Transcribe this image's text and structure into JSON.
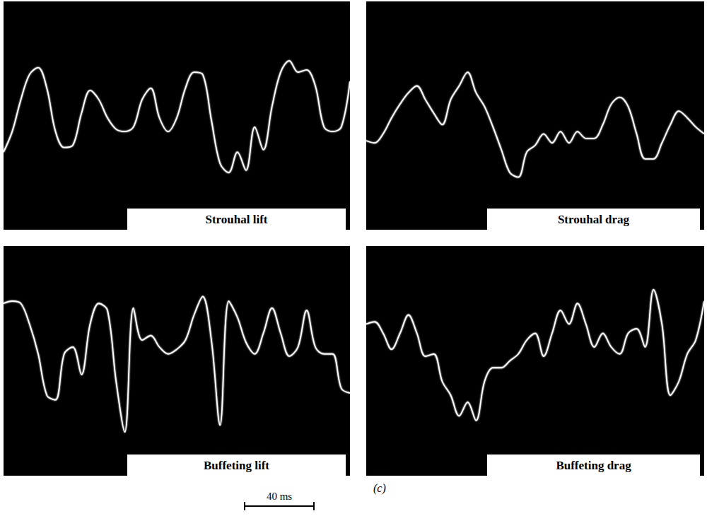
{
  "chart_data": [
    {
      "type": "line",
      "title": "Strouhal lift",
      "color": "#ffffff",
      "grid": false,
      "tick_labels": false,
      "xlim": [
        0,
        200
      ],
      "ylim": [
        0,
        100
      ],
      "x": [
        0,
        5,
        10,
        15,
        20,
        25,
        30,
        35,
        40,
        45,
        50,
        55,
        60,
        65,
        70,
        75,
        80,
        85,
        90,
        95,
        100,
        105,
        110,
        115,
        120,
        125,
        130,
        135,
        140,
        145,
        150,
        155,
        160,
        165,
        170,
        175,
        180,
        185,
        190,
        195,
        200
      ],
      "values": [
        34,
        43,
        57,
        68,
        71,
        62,
        43,
        36,
        37,
        51,
        61,
        57,
        49,
        44,
        43,
        45,
        57,
        62,
        49,
        43,
        49,
        62,
        69,
        68,
        48,
        29,
        25,
        34,
        26,
        45,
        35,
        54,
        69,
        74,
        69,
        70,
        63,
        45,
        43,
        45,
        65
      ]
    },
    {
      "type": "line",
      "title": "Strouhal drag",
      "color": "#ffffff",
      "grid": false,
      "tick_labels": false,
      "xlim": [
        0,
        200
      ],
      "ylim": [
        0,
        100
      ],
      "x": [
        0,
        5,
        10,
        15,
        20,
        25,
        30,
        35,
        40,
        45,
        50,
        55,
        60,
        65,
        70,
        75,
        80,
        85,
        90,
        95,
        100,
        105,
        110,
        115,
        120,
        125,
        130,
        135,
        140,
        145,
        150,
        155,
        160,
        165,
        170,
        175,
        180,
        185,
        190,
        195,
        200
      ],
      "values": [
        39,
        38,
        42,
        49,
        55,
        60,
        63,
        57,
        51,
        46,
        57,
        63,
        69,
        60,
        54,
        45,
        35,
        25,
        23,
        34,
        37,
        42,
        38,
        43,
        38,
        43,
        40,
        40,
        46,
        55,
        58,
        54,
        42,
        31,
        31,
        38,
        46,
        52,
        49,
        45,
        42
      ]
    },
    {
      "type": "line",
      "title": "Buffeting lift",
      "color": "#ffffff",
      "grid": false,
      "tick_labels": false,
      "xlim": [
        0,
        200
      ],
      "ylim": [
        0,
        100
      ],
      "x": [
        0,
        5,
        10,
        15,
        20,
        25,
        30,
        35,
        40,
        45,
        50,
        55,
        60,
        65,
        70,
        75,
        80,
        85,
        90,
        95,
        100,
        105,
        110,
        115,
        120,
        125,
        130,
        135,
        140,
        145,
        150,
        155,
        160,
        165,
        170,
        175,
        180,
        185,
        190,
        195,
        200
      ],
      "values": [
        75,
        76,
        75,
        66,
        53,
        35,
        33,
        53,
        56,
        44,
        66,
        75,
        72,
        41,
        19,
        73,
        59,
        61,
        56,
        53,
        55,
        59,
        70,
        78,
        59,
        22,
        76,
        69,
        58,
        53,
        62,
        73,
        62,
        52,
        56,
        72,
        56,
        53,
        53,
        38,
        36
      ]
    },
    {
      "type": "line",
      "title": "Buffeting drag",
      "color": "#ffffff",
      "grid": false,
      "tick_labels": false,
      "xlim": [
        0,
        200
      ],
      "ylim": [
        0,
        100
      ],
      "x": [
        0,
        5,
        10,
        15,
        20,
        25,
        30,
        35,
        40,
        45,
        50,
        55,
        60,
        65,
        70,
        75,
        80,
        85,
        90,
        95,
        100,
        105,
        110,
        115,
        120,
        125,
        130,
        135,
        140,
        145,
        150,
        155,
        160,
        165,
        170,
        175,
        180,
        185,
        190,
        195,
        200
      ],
      "values": [
        66,
        67,
        62,
        55,
        62,
        70,
        62,
        52,
        53,
        41,
        35,
        26,
        32,
        24,
        41,
        47,
        47,
        50,
        53,
        59,
        62,
        52,
        62,
        72,
        66,
        75,
        66,
        56,
        62,
        56,
        53,
        62,
        64,
        56,
        81,
        66,
        35,
        41,
        53,
        59,
        76
      ]
    }
  ],
  "panel_label": "(c)",
  "scale_bar": {
    "value": 40,
    "label": "40 ms"
  }
}
